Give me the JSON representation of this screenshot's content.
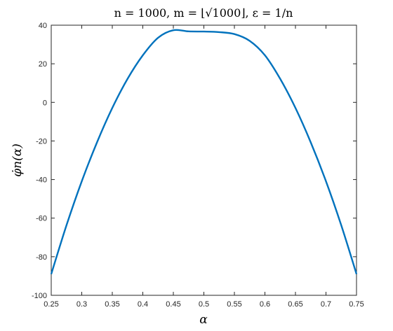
{
  "chart_data": {
    "type": "line",
    "title": "n = 1000,  m = ⌊√1000⌋,  ε = 1/n",
    "xlabel": "α",
    "ylabel": "φ̇n(α)",
    "xlim": [
      0.25,
      0.75
    ],
    "ylim": [
      -100,
      40
    ],
    "xticks": [
      0.25,
      0.3,
      0.35,
      0.4,
      0.45,
      0.5,
      0.55,
      0.6,
      0.65,
      0.7,
      0.75
    ],
    "xtick_labels": [
      "0.25",
      "0.3",
      "0.35",
      "0.4",
      "0.45",
      "0.5",
      "0.55",
      "0.6",
      "0.65",
      "0.7",
      "0.75"
    ],
    "yticks": [
      -100,
      -80,
      -60,
      -40,
      -20,
      0,
      20,
      40
    ],
    "ytick_labels": [
      "-100",
      "-80",
      "-60",
      "-40",
      "-20",
      "0",
      "20",
      "40"
    ],
    "grid": false,
    "colors": {
      "line": "#0072BD",
      "axes": "#262626"
    },
    "series": [
      {
        "x": [
          0.25,
          0.275,
          0.3,
          0.325,
          0.35,
          0.375,
          0.4,
          0.425,
          0.45,
          0.475,
          0.5,
          0.525,
          0.55,
          0.575,
          0.6,
          0.625,
          0.65,
          0.675,
          0.7,
          0.725,
          0.75
        ],
        "y": [
          -89,
          -63.7,
          -40.9,
          -20.7,
          -2.9,
          12.2,
          24.4,
          33.5,
          37.4,
          36.8,
          36.7,
          36.4,
          35.4,
          31.9,
          24.4,
          12.2,
          -2.9,
          -20.7,
          -40.9,
          -63.7,
          -89
        ]
      }
    ]
  }
}
